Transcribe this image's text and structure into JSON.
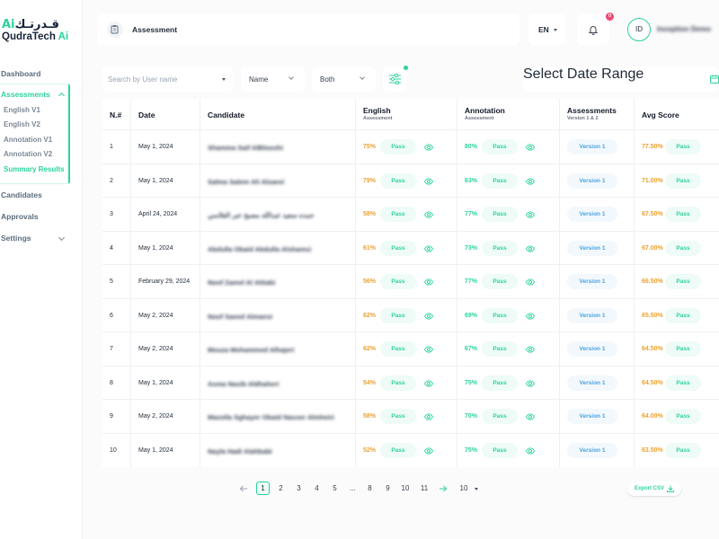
{
  "brand": {
    "arabic": "قـدرتـك",
    "arabic_ai": "Ai",
    "name": "QudraTech",
    "name_ai": "Ai"
  },
  "sidebar": {
    "items": [
      {
        "label": "Dashboard"
      },
      {
        "label": "Assessments"
      },
      {
        "label": "Candidates"
      },
      {
        "label": "Approvals"
      },
      {
        "label": "Settings"
      }
    ],
    "assessments_sub": [
      {
        "label": "English V1"
      },
      {
        "label": "English V2"
      },
      {
        "label": "Annotation V1"
      },
      {
        "label": "Annotation V2"
      },
      {
        "label": "Summary Results"
      }
    ]
  },
  "header": {
    "title": "Assessment",
    "language": "EN",
    "notification_count": "0",
    "avatar_initials": "ID",
    "user_name": "Inception Demo"
  },
  "filters": {
    "search_placeholder": "Search by User name",
    "sort_value": "Name",
    "type_value": "Both",
    "date_placeholder": "Select Date Range"
  },
  "table": {
    "headers": {
      "num": "N.#",
      "date": "Date",
      "candidate": "Candidate",
      "english": "English",
      "english_sub": "Assessment",
      "annotation": "Annotation",
      "annotation_sub": "Assessment",
      "assessments": "Assessments",
      "assessments_sub": "Version 1 & 2",
      "avg": "Avg Score"
    },
    "rows": [
      {
        "num": "1",
        "date": "May 1, 2024",
        "candidate": "Shamma Saif AlBlooshi",
        "english": "75%",
        "english_status": "Pass",
        "annotation": "80%",
        "annotation_status": "Pass",
        "version": "Version 1",
        "avg": "77.50%",
        "avg_status": "Pass"
      },
      {
        "num": "2",
        "date": "May 1, 2024",
        "candidate": "Salma Salem Ali Alzaeei",
        "english": "79%",
        "english_status": "Pass",
        "annotation": "63%",
        "annotation_status": "Pass",
        "version": "Version 1",
        "avg": "71.00%",
        "avg_status": "Pass"
      },
      {
        "num": "3",
        "date": "April 24, 2024",
        "candidate": "حمده سعيد عبدالله مصبح عبر الفلاسي",
        "english": "58%",
        "english_status": "Pass",
        "annotation": "77%",
        "annotation_status": "Pass",
        "version": "Version 1",
        "avg": "67.50%",
        "avg_status": "Pass"
      },
      {
        "num": "4",
        "date": "May 1, 2024",
        "candidate": "Abdulla Obaid Abdulla Alshamsi",
        "english": "61%",
        "english_status": "Pass",
        "annotation": "73%",
        "annotation_status": "Pass",
        "version": "Version 1",
        "avg": "67.00%",
        "avg_status": "Pass"
      },
      {
        "num": "5",
        "date": "February 29, 2024",
        "candidate": "Noof Zamel Al Attiabi",
        "english": "56%",
        "english_status": "Pass",
        "annotation": "77%",
        "annotation_status": "Pass",
        "version": "Version 1",
        "avg": "66.50%",
        "avg_status": "Pass"
      },
      {
        "num": "6",
        "date": "May 2, 2024",
        "candidate": "Noof Saeed Almansi",
        "english": "62%",
        "english_status": "Pass",
        "annotation": "69%",
        "annotation_status": "Pass",
        "version": "Version 1",
        "avg": "65.50%",
        "avg_status": "Pass"
      },
      {
        "num": "7",
        "date": "May 2, 2024",
        "candidate": "Mouza Mohammed Alhajeri",
        "english": "62%",
        "english_status": "Pass",
        "annotation": "67%",
        "annotation_status": "Pass",
        "version": "Version 1",
        "avg": "64.50%",
        "avg_status": "Pass"
      },
      {
        "num": "8",
        "date": "May 1, 2024",
        "candidate": "Asma Nasib Aldhaheri",
        "english": "54%",
        "english_status": "Pass",
        "annotation": "75%",
        "annotation_status": "Pass",
        "version": "Version 1",
        "avg": "64.50%",
        "avg_status": "Pass"
      },
      {
        "num": "9",
        "date": "May 2, 2024",
        "candidate": "Mazolla Sghayer Obaid Nasser Almheiri",
        "english": "58%",
        "english_status": "Pass",
        "annotation": "70%",
        "annotation_status": "Pass",
        "version": "Version 1",
        "avg": "64.00%",
        "avg_status": "Pass"
      },
      {
        "num": "10",
        "date": "May 1, 2024",
        "candidate": "Nayla Hadi Alahbabi",
        "english": "52%",
        "english_status": "Pass",
        "annotation": "75%",
        "annotation_status": "Pass",
        "version": "Version 1",
        "avg": "63.50%",
        "avg_status": "Pass"
      }
    ]
  },
  "pagination": {
    "pages": [
      "1",
      "2",
      "3",
      "4",
      "5",
      "...",
      "8",
      "9",
      "10",
      "11"
    ],
    "current": "1",
    "page_size": "10",
    "export_label": "Export CSV"
  },
  "colors": {
    "accent": "#2bd39b",
    "warning": "#f0a12c",
    "info": "#4aa3e0",
    "badge": "#ef4873"
  }
}
